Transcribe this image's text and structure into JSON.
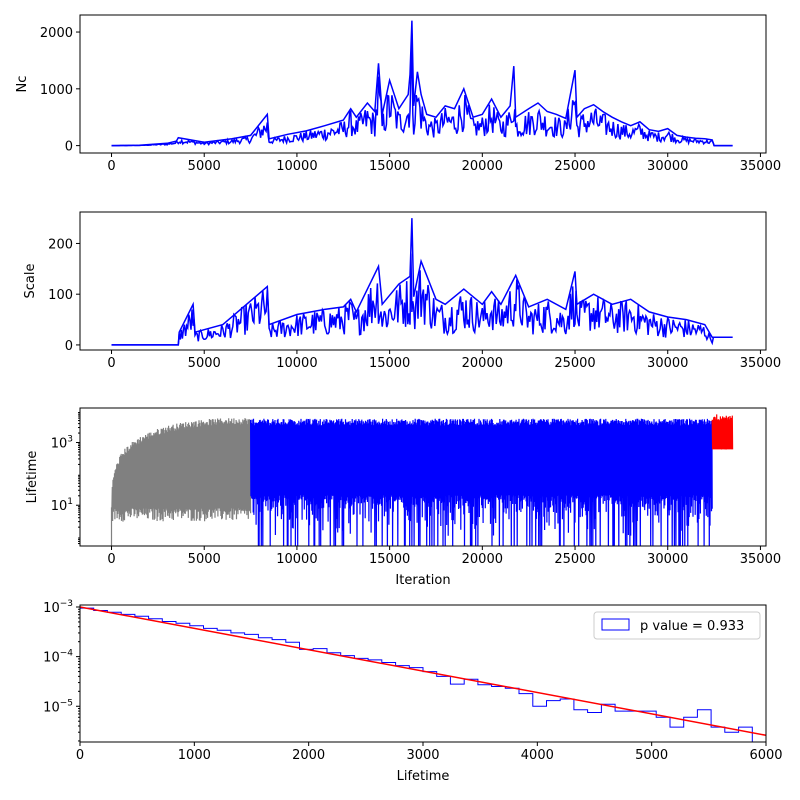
{
  "chart_data": [
    {
      "type": "line",
      "ylabel": "Nc",
      "xlabel": "",
      "xlim": [
        -1700,
        35300
      ],
      "ylim": [
        -130,
        2300
      ],
      "xticks": [
        0,
        5000,
        10000,
        15000,
        20000,
        25000,
        30000,
        35000
      ],
      "yticks": [
        0,
        1000,
        2000
      ],
      "series": [
        {
          "color": "#0000ff",
          "x": [
            0,
            1500,
            3000,
            3500,
            3600,
            5000,
            6500,
            7500,
            8400,
            8500,
            9500,
            10500,
            11500,
            12500,
            12900,
            13200,
            13800,
            14200,
            14400,
            14600,
            15000,
            15500,
            16000,
            16100,
            16200,
            16300,
            16500,
            16700,
            17000,
            17500,
            18000,
            18500,
            19000,
            19500,
            20000,
            20500,
            21000,
            21500,
            21700,
            21800,
            22500,
            23000,
            23500,
            24000,
            24500,
            25000,
            25100,
            25500,
            26000,
            26500,
            27000,
            27500,
            28000,
            28500,
            29000,
            29500,
            30000,
            30500,
            31000,
            31500,
            32000,
            32400,
            32500,
            33500
          ],
          "y": [
            0,
            5,
            40,
            80,
            140,
            60,
            120,
            180,
            550,
            120,
            200,
            260,
            350,
            450,
            650,
            500,
            750,
            600,
            1450,
            550,
            1150,
            650,
            900,
            1250,
            2200,
            700,
            1300,
            900,
            550,
            500,
            700,
            650,
            1000,
            500,
            550,
            820,
            500,
            700,
            1400,
            500,
            650,
            750,
            600,
            550,
            480,
            1330,
            500,
            650,
            720,
            600,
            500,
            420,
            350,
            420,
            280,
            250,
            300,
            180,
            150,
            130,
            120,
            100,
            0,
            0
          ]
        }
      ]
    },
    {
      "type": "line",
      "ylabel": "Scale",
      "xlabel": "",
      "xlim": [
        -1700,
        35300
      ],
      "ylim": [
        -10,
        262
      ],
      "xticks": [
        0,
        5000,
        10000,
        15000,
        20000,
        25000,
        30000,
        35000
      ],
      "yticks": [
        0,
        100,
        200
      ],
      "series": [
        {
          "color": "#0000ff",
          "x": [
            0,
            3600,
            3650,
            4400,
            4500,
            6000,
            8400,
            8500,
            10000,
            11500,
            12500,
            12900,
            13200,
            13800,
            14400,
            14600,
            15500,
            16100,
            16200,
            16300,
            16700,
            17500,
            18000,
            19000,
            20000,
            20500,
            21000,
            21800,
            22500,
            23500,
            24500,
            25000,
            25100,
            26000,
            27000,
            28000,
            29000,
            30000,
            31000,
            32000,
            32400,
            33500
          ],
          "y": [
            0,
            0,
            25,
            80,
            25,
            40,
            115,
            40,
            60,
            70,
            75,
            90,
            65,
            110,
            155,
            80,
            120,
            135,
            250,
            95,
            165,
            90,
            80,
            110,
            80,
            105,
            80,
            137,
            75,
            90,
            70,
            145,
            80,
            100,
            80,
            90,
            65,
            55,
            50,
            40,
            15,
            15
          ]
        }
      ]
    },
    {
      "type": "line",
      "ylabel": "Lifetime",
      "xlabel": "Iteration",
      "yscale": "log",
      "ylim_log10": [
        -0.3,
        4.1
      ],
      "xlim": [
        -1700,
        35300
      ],
      "xticks": [
        0,
        5000,
        10000,
        15000,
        20000,
        25000,
        30000,
        35000
      ],
      "yticks": [
        {
          "value": 10,
          "label": "10",
          "exp": "1"
        },
        {
          "value": 1000,
          "label": "10",
          "exp": "3"
        }
      ],
      "series": [
        {
          "color": "#808080",
          "x_range": [
            0,
            7500
          ],
          "envelope_top": [
            [
              0,
              10
            ],
            [
              300,
              200
            ],
            [
              1000,
              800
            ],
            [
              2000,
              1800
            ],
            [
              3000,
              3000
            ],
            [
              4000,
              4000
            ],
            [
              5000,
              4800
            ],
            [
              6000,
              5200
            ],
            [
              7500,
              5500
            ]
          ],
          "envelope_bottom": 3
        },
        {
          "color": "#0000ff",
          "x_range": [
            7500,
            32400
          ],
          "envelope_top": 5000,
          "envelope_bottom": 1
        },
        {
          "color": "#ff0000",
          "x_range": [
            32400,
            33500
          ],
          "envelope_top": 7000,
          "envelope_bottom": 600
        }
      ]
    },
    {
      "type": "histogram",
      "xlabel": "Lifetime",
      "ylabel": "",
      "yscale": "log",
      "xlim": [
        0,
        6000
      ],
      "ylim_log10": [
        -5.72,
        -2.96
      ],
      "xticks": [
        0,
        1000,
        2000,
        3000,
        4000,
        5000,
        6000
      ],
      "yticks": [
        {
          "value": 1e-05,
          "label": "10",
          "exp": "−5"
        },
        {
          "value": 0.0001,
          "label": "10",
          "exp": "−4"
        },
        {
          "value": 0.001,
          "label": "10",
          "exp": "−3"
        }
      ],
      "legend": {
        "label": "p value = 0.933",
        "position": "top-right"
      },
      "bin_width": 120,
      "hist_values": [
        0.00095,
        0.00085,
        0.00078,
        0.00071,
        0.00065,
        0.00058,
        0.00051,
        0.00047,
        0.00042,
        0.00037,
        0.00034,
        0.0003,
        0.00028,
        0.00024,
        0.00022,
        0.000195,
        0.00014,
        0.000145,
        0.00012,
        0.000105,
        9.2e-05,
        8.6e-05,
        7.6e-05,
        6.6e-05,
        6e-05,
        5e-05,
        4e-05,
        2.8e-05,
        3.5e-05,
        2.7e-05,
        2.5e-05,
        2.3e-05,
        1.8e-05,
        1e-05,
        1.3e-05,
        1.4e-05,
        8.5e-06,
        7.5e-06,
        1.1e-05,
        8e-06,
        8e-06,
        8e-06,
        6e-06,
        3.8e-06,
        6e-06,
        8.5e-06,
        3.8e-06,
        3e-06,
        3.8e-06,
        1.6e-06
      ],
      "fit_line": {
        "color": "#ff0000",
        "x": [
          0,
          6000
        ],
        "y": [
          0.001,
          2.6e-06
        ]
      },
      "hist_color": "#0000ff"
    }
  ]
}
